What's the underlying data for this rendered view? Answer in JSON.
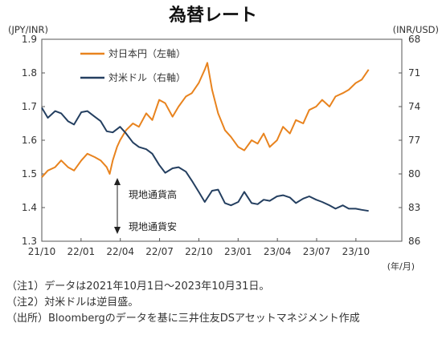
{
  "chart_data": {
    "type": "line",
    "title": "為替レート",
    "left_axis_label": "(JPY/INR)",
    "right_axis_label": "(INR/USD)",
    "x_unit_label": "(年/月)",
    "left_ylim": [
      1.3,
      1.9
    ],
    "left_ticks": [
      "1.9",
      "1.8",
      "1.7",
      "1.6",
      "1.5",
      "1.4",
      "1.3"
    ],
    "right_ylim": [
      68,
      86
    ],
    "right_inverted": true,
    "right_ticks": [
      "68",
      "71",
      "74",
      "77",
      "80",
      "83",
      "86"
    ],
    "x_ticks": [
      "21/10",
      "22/01",
      "22/04",
      "22/07",
      "22/10",
      "23/01",
      "23/04",
      "23/07",
      "23/10"
    ],
    "grid": false,
    "legend_position": "top-left",
    "series": [
      {
        "name": "対日本円（左軸）",
        "axis": "left",
        "color": "#E8831E",
        "x": [
          "2021-10-01",
          "2021-10-15",
          "2021-11-01",
          "2021-11-15",
          "2021-12-01",
          "2021-12-15",
          "2022-01-01",
          "2022-01-15",
          "2022-02-01",
          "2022-02-15",
          "2022-03-01",
          "2022-03-08",
          "2022-03-15",
          "2022-03-25",
          "2022-04-01",
          "2022-04-15",
          "2022-05-01",
          "2022-05-15",
          "2022-06-01",
          "2022-06-15",
          "2022-07-01",
          "2022-07-15",
          "2022-08-01",
          "2022-08-15",
          "2022-09-01",
          "2022-09-15",
          "2022-10-01",
          "2022-10-15",
          "2022-10-21",
          "2022-11-01",
          "2022-11-15",
          "2022-12-01",
          "2022-12-15",
          "2023-01-01",
          "2023-01-15",
          "2023-02-01",
          "2023-02-15",
          "2023-03-01",
          "2023-03-15",
          "2023-04-01",
          "2023-04-15",
          "2023-05-01",
          "2023-05-15",
          "2023-06-01",
          "2023-06-15",
          "2023-07-01",
          "2023-07-15",
          "2023-08-01",
          "2023-08-15",
          "2023-09-01",
          "2023-09-15",
          "2023-10-01",
          "2023-10-15",
          "2023-10-31"
        ],
        "values": [
          1.49,
          1.51,
          1.52,
          1.54,
          1.52,
          1.51,
          1.54,
          1.56,
          1.55,
          1.54,
          1.52,
          1.5,
          1.54,
          1.58,
          1.6,
          1.63,
          1.65,
          1.64,
          1.68,
          1.66,
          1.72,
          1.71,
          1.67,
          1.7,
          1.73,
          1.74,
          1.77,
          1.81,
          1.83,
          1.75,
          1.68,
          1.63,
          1.61,
          1.58,
          1.57,
          1.6,
          1.59,
          1.62,
          1.58,
          1.6,
          1.64,
          1.62,
          1.66,
          1.65,
          1.69,
          1.7,
          1.72,
          1.7,
          1.73,
          1.74,
          1.75,
          1.77,
          1.78,
          1.81
        ]
      },
      {
        "name": "対米ドル（右軸）",
        "axis": "right",
        "color": "#243F60",
        "x": [
          "2021-10-01",
          "2021-10-15",
          "2021-11-01",
          "2021-11-15",
          "2021-12-01",
          "2021-12-15",
          "2022-01-01",
          "2022-01-15",
          "2022-02-01",
          "2022-02-15",
          "2022-03-01",
          "2022-03-15",
          "2022-04-01",
          "2022-04-15",
          "2022-05-01",
          "2022-05-15",
          "2022-06-01",
          "2022-06-15",
          "2022-07-01",
          "2022-07-15",
          "2022-08-01",
          "2022-08-15",
          "2022-09-01",
          "2022-09-15",
          "2022-10-01",
          "2022-10-15",
          "2022-11-01",
          "2022-11-15",
          "2022-12-01",
          "2022-12-15",
          "2023-01-01",
          "2023-01-15",
          "2023-02-01",
          "2023-02-15",
          "2023-03-01",
          "2023-03-15",
          "2023-04-01",
          "2023-04-15",
          "2023-05-01",
          "2023-05-15",
          "2023-06-01",
          "2023-06-15",
          "2023-07-01",
          "2023-07-15",
          "2023-08-01",
          "2023-08-15",
          "2023-09-01",
          "2023-09-15",
          "2023-10-01",
          "2023-10-15",
          "2023-10-31"
        ],
        "values": [
          74.1,
          75.0,
          74.4,
          74.6,
          75.3,
          75.6,
          74.5,
          74.4,
          74.9,
          75.3,
          76.2,
          76.3,
          75.8,
          76.4,
          77.2,
          77.6,
          77.8,
          78.2,
          79.2,
          79.9,
          79.5,
          79.4,
          79.8,
          80.6,
          81.6,
          82.5,
          81.5,
          81.4,
          82.6,
          82.8,
          82.5,
          81.6,
          82.6,
          82.7,
          82.3,
          82.4,
          82.0,
          81.9,
          82.1,
          82.6,
          82.2,
          82.0,
          82.3,
          82.5,
          82.8,
          83.1,
          82.8,
          83.1,
          83.1,
          83.2,
          83.3
        ]
      }
    ],
    "annotations": {
      "upper": "現地通貨高",
      "lower": "現地通貨安"
    }
  },
  "notes": [
    "（注1）データは2021年10月1日～2023年10月31日。",
    "（注2）対米ドルは逆目盛。",
    "（出所）Bloombergのデータを基に三井住友DSアセットマネジメント作成"
  ]
}
